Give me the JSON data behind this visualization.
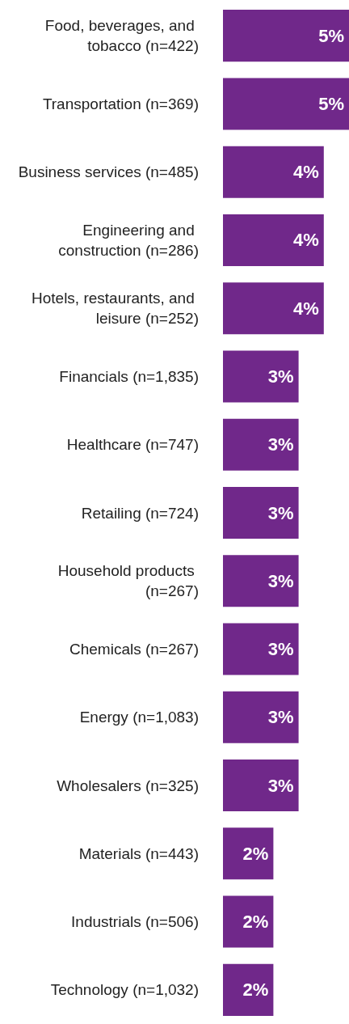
{
  "chart_data": {
    "type": "bar",
    "orientation": "horizontal",
    "categories": [
      "Food, beverages, and tobacco (n=422)",
      "Transportation (n=369)",
      "Business services (n=485)",
      "Engineering and construction (n=286)",
      "Hotels, restaurants, and leisure (n=252)",
      "Financials (n=1,835)",
      "Healthcare (n=747)",
      "Retailing (n=724)",
      "Household products (n=267)",
      "Chemicals (n=267)",
      "Energy (n=1,083)",
      "Wholesalers (n=325)",
      "Materials (n=443)",
      "Industrials (n=506)",
      "Technology (n=1,032)"
    ],
    "values": [
      5,
      5,
      4,
      4,
      4,
      3,
      3,
      3,
      3,
      3,
      3,
      3,
      2,
      2,
      2
    ],
    "value_labels": [
      "5%",
      "5%",
      "4%",
      "4%",
      "4%",
      "3%",
      "3%",
      "3%",
      "3%",
      "3%",
      "3%",
      "3%",
      "2%",
      "2%",
      "2%"
    ],
    "color": "#70288a"
  }
}
